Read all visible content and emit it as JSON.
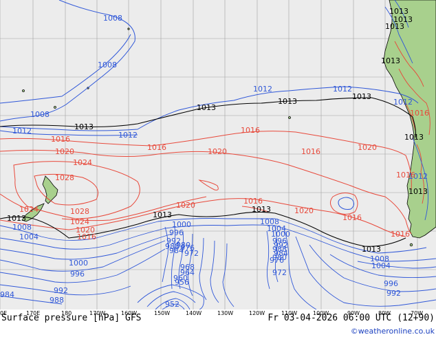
{
  "footer": {
    "title": "Surface pressure [hPa] GFS",
    "valid_time": "Fr 03-04-2026 06:00 UTC (12+90)",
    "credit": "©weatheronline.co.uk"
  },
  "longitude_labels": [
    "0E",
    "170E",
    "180",
    "170W",
    "160W",
    "150W",
    "140W",
    "130W",
    "120W",
    "110W",
    "100W",
    "90W",
    "80W",
    "70W"
  ],
  "colors": {
    "ocean": "#ececec",
    "land": "#a8d08d",
    "land_outline": "#000000",
    "high_isobar": "#e8483a",
    "low_isobar": "#2f57d8",
    "reference_isobar": "#000000",
    "grid": "#a0a0a0"
  },
  "isobar_labels": {
    "blue": [
      "1008",
      "1008",
      "1012",
      "1012",
      "1012",
      "1012",
      "1008",
      "1012",
      "1008",
      "1004",
      "1000",
      "996",
      "992",
      "988",
      "984",
      "1008",
      "1004",
      "1000",
      "996",
      "992",
      "988",
      "984",
      "980",
      "976",
      "972",
      "968",
      "964",
      "960",
      "956",
      "952",
      "1000",
      "996",
      "992",
      "988",
      "984",
      "980",
      "976",
      "972",
      "1008",
      "1004",
      "996",
      "992",
      "1012"
    ],
    "red": [
      "1016",
      "1016",
      "1016",
      "1016",
      "1016",
      "1016",
      "1020",
      "1020",
      "1020",
      "1020",
      "1020",
      "1020",
      "1024",
      "1024",
      "1024",
      "1028",
      "1028",
      "1016",
      "1016",
      "1016",
      "1016"
    ],
    "black": [
      "1013",
      "1013",
      "1013",
      "1013",
      "1013",
      "1013",
      "1013",
      "1013",
      "1013",
      "1013",
      "1013",
      "1013",
      "1013",
      "1013"
    ]
  }
}
